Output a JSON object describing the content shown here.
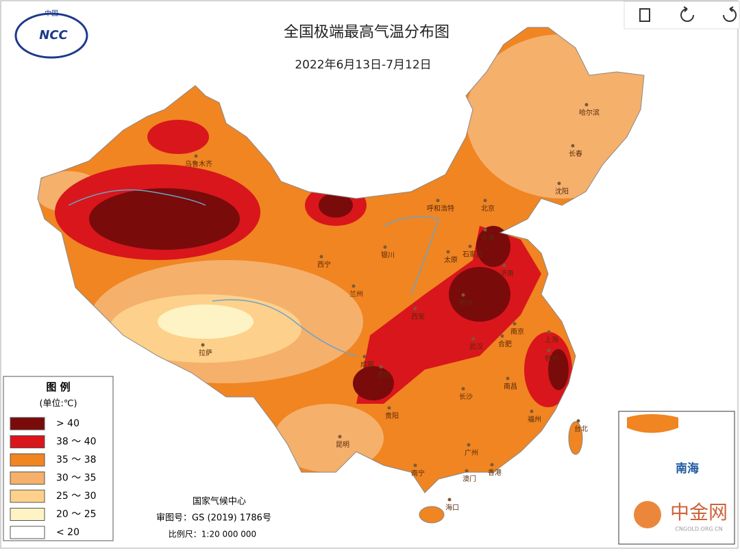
{
  "header": {
    "title": "全国极端最高气温分布图",
    "subtitle": "2022年6月13日-7月12日",
    "logo": "NCC",
    "logo_top": "中国"
  },
  "legend": {
    "title": "图 例",
    "unit": "(单位:℃)",
    "items": [
      {
        "label": "> 40",
        "color": "#7a0b0b"
      },
      {
        "label": "38 ～ 40",
        "color": "#d9161c"
      },
      {
        "label": "35 ～ 38",
        "color": "#f08522"
      },
      {
        "label": "30 ～ 35",
        "color": "#f5b06c"
      },
      {
        "label": "25 ～ 30",
        "color": "#fdd18b"
      },
      {
        "label": "20 ～ 25",
        "color": "#fef3c4"
      },
      {
        "label": "< 20",
        "color": "#ffffff"
      }
    ]
  },
  "footer": {
    "agency": "国家气候中心",
    "approval": "审图号：GS (2019) 1786号",
    "scale": "比例尺：1:20 000 000"
  },
  "cities": [
    "乌鲁木齐",
    "西宁",
    "兰州",
    "银川",
    "拉萨",
    "呼和浩特",
    "北京",
    "天津",
    "石家庄",
    "太原",
    "济南",
    "郑州",
    "西安",
    "成都",
    "重庆",
    "贵阳",
    "昆明",
    "南宁",
    "广州",
    "香港",
    "澳门",
    "海口",
    "长沙",
    "武汉",
    "合肥",
    "南京",
    "上海",
    "杭州",
    "南昌",
    "福州",
    "台北",
    "哈尔滨",
    "长春",
    "沈阳"
  ],
  "inset": {
    "label": "南海"
  },
  "watermark": {
    "name": "中金网",
    "site": "CNGOLD.ORG.CN"
  }
}
